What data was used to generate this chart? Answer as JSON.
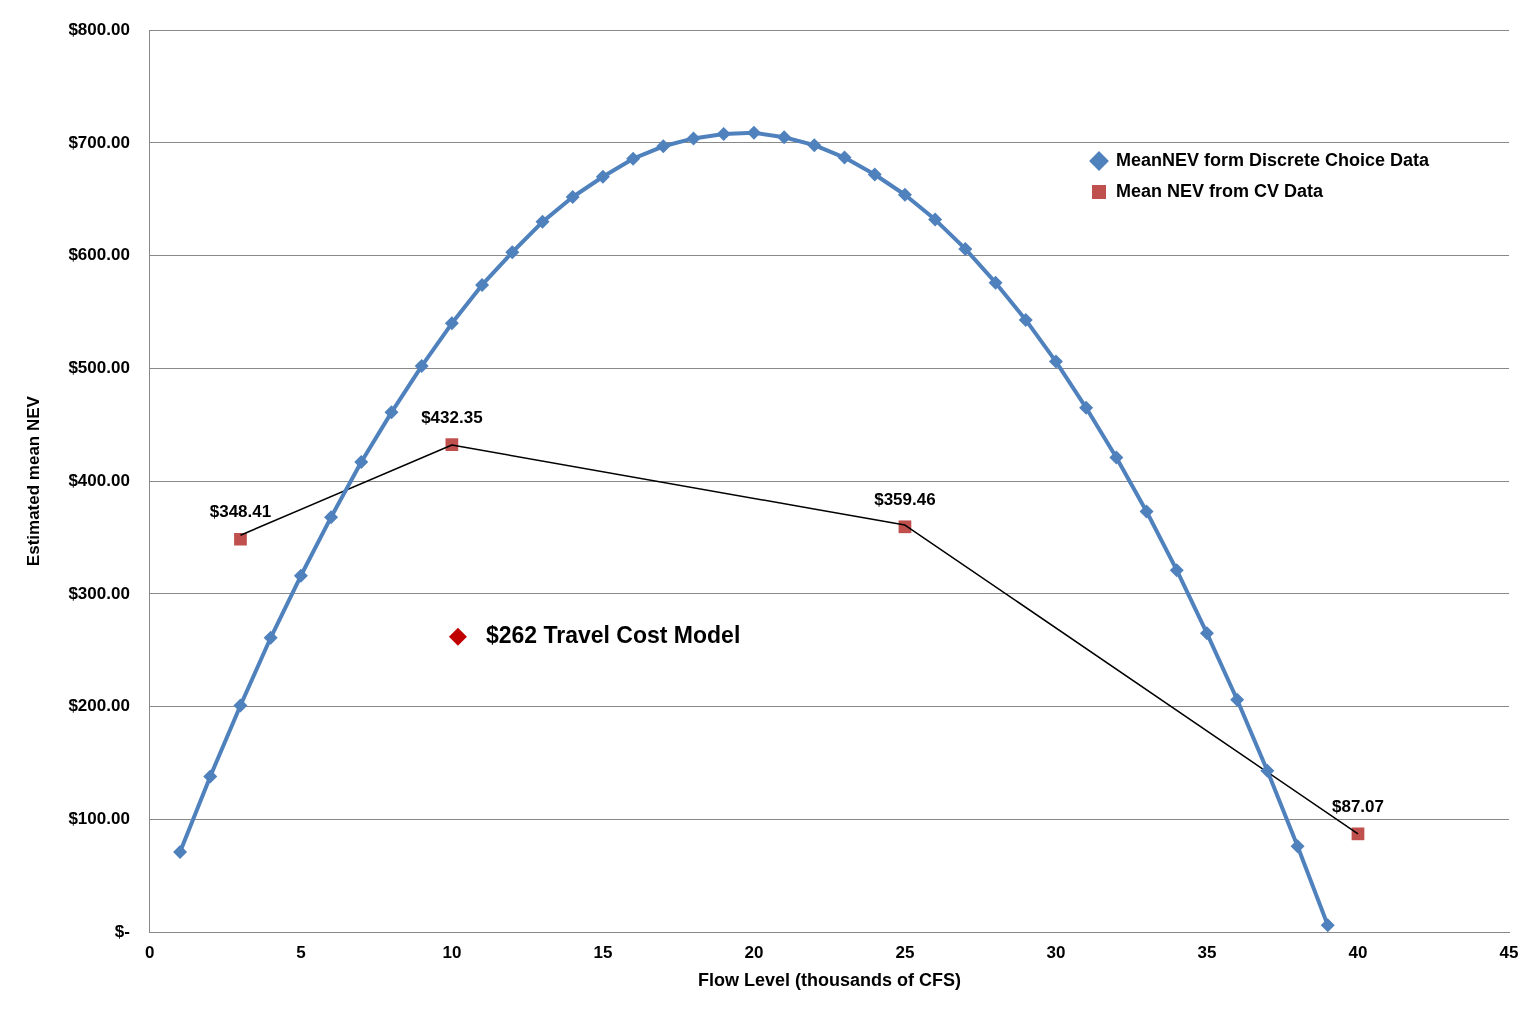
{
  "chart_data": {
    "type": "line",
    "xlabel": "Flow Level (thousands of CFS)",
    "ylabel": "Estimated mean NEV",
    "xlim": [
      0,
      45
    ],
    "xticks": [
      0,
      5,
      10,
      15,
      20,
      25,
      30,
      35,
      40,
      45
    ],
    "ylim": [
      0,
      800
    ],
    "yticks": [
      {
        "value": 0,
        "label": "$-"
      },
      {
        "value": 100,
        "label": "$100.00"
      },
      {
        "value": 200,
        "label": "$200.00"
      },
      {
        "value": 300,
        "label": "$300.00"
      },
      {
        "value": 400,
        "label": "$400.00"
      },
      {
        "value": 500,
        "label": "$500.00"
      },
      {
        "value": 600,
        "label": "$600.00"
      },
      {
        "value": 700,
        "label": "$700.00"
      },
      {
        "value": 800,
        "label": "$800.00"
      }
    ],
    "grid": "y",
    "legend": "top right",
    "series": [
      {
        "name": "MeanNEV form Discrete Choice Data",
        "type": "line",
        "color": "#4f81bd",
        "marker": "diamond",
        "x": [
          1,
          2,
          3,
          4,
          5,
          6,
          7,
          8,
          9,
          10,
          11,
          12,
          13,
          14,
          15,
          16,
          17,
          18,
          19,
          20,
          21,
          22,
          23,
          24,
          25,
          26,
          27,
          28,
          29,
          30,
          31,
          32,
          33,
          34,
          35,
          36,
          37,
          38,
          39
        ],
        "values": [
          71,
          138,
          201,
          261,
          316,
          368,
          417,
          461,
          502,
          540,
          574,
          603,
          630,
          652,
          670,
          686,
          697,
          704,
          708,
          709,
          705,
          698,
          687,
          672,
          654,
          632,
          606,
          576,
          543,
          506,
          465,
          421,
          373,
          321,
          265,
          206,
          143,
          76,
          6
        ]
      },
      {
        "type": "line",
        "color": "#000000",
        "marker": "none",
        "x": [
          3,
          10,
          25,
          40
        ],
        "values": [
          352,
          432,
          361,
          87
        ]
      },
      {
        "name": "Mean NEV from CV Data",
        "type": "scatter",
        "color": "#c0504d",
        "marker": "square",
        "x": [
          3,
          10,
          25,
          40
        ],
        "values": [
          348.41,
          432.35,
          359.46,
          87.07
        ],
        "value_labels": [
          "$348.41",
          "$432.35",
          "$359.46",
          "$87.07"
        ]
      },
      {
        "type": "scatter",
        "color": "#c00000",
        "marker": "diamond",
        "x": [
          10.2
        ],
        "values": [
          262
        ]
      }
    ],
    "annotations": [
      {
        "text": "$262 Travel Cost Model",
        "x": 10.2,
        "y": 262
      }
    ]
  }
}
